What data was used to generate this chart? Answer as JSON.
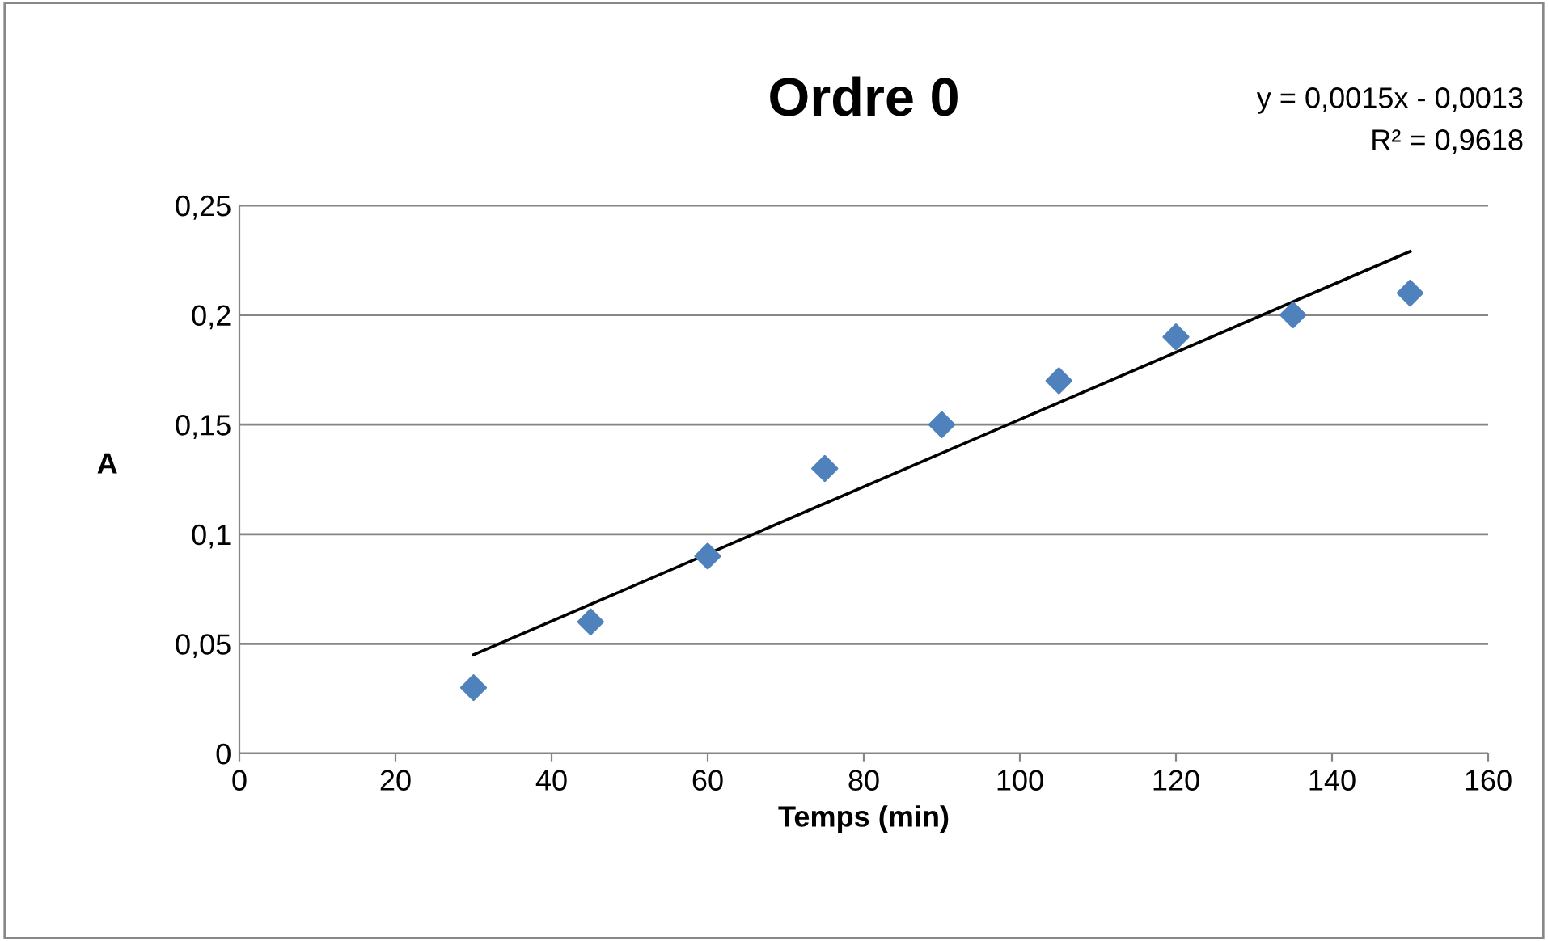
{
  "chart_data": {
    "type": "scatter",
    "title": "Ordre 0",
    "xlabel": "Temps (min)",
    "ylabel": "A",
    "annotations": [
      "y = 0,0015x - 0,0013",
      "R² = 0,9618"
    ],
    "series": [
      {
        "color": "#4f81bd",
        "marker": "diamond",
        "x": [
          30,
          45,
          60,
          75,
          90,
          105,
          120,
          135,
          150
        ],
        "values": [
          0.03,
          0.06,
          0.09,
          0.13,
          0.15,
          0.17,
          0.19,
          0.2,
          0.21
        ]
      },
      {
        "type": "line",
        "color": "#000000",
        "marker": "none",
        "line_style": "solid",
        "x": [
          30,
          150
        ],
        "values": [
          0.045,
          0.229
        ]
      }
    ],
    "xlim": [
      0,
      160
    ],
    "xticks": [
      0,
      20,
      40,
      60,
      80,
      100,
      120,
      140,
      160
    ],
    "ylim": [
      0,
      0.25
    ],
    "yticks": [
      0,
      {
        "value": 0.05,
        "label": "0,05"
      },
      {
        "value": 0.1,
        "label": "0,1"
      },
      {
        "value": 0.15,
        "label": "0,15"
      },
      {
        "value": 0.2,
        "label": "0,2"
      },
      {
        "value": 0.25,
        "label": "0,25"
      }
    ],
    "grid": "y",
    "legend": false
  }
}
